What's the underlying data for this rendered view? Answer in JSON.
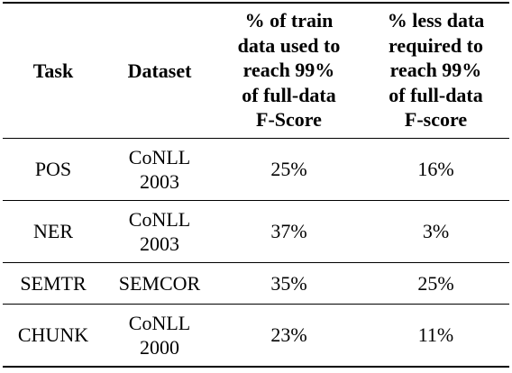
{
  "table": {
    "headers": {
      "task": "Task",
      "dataset": "Dataset",
      "train_pct": [
        "% of train",
        "data used to",
        "reach 99%",
        "of full-data",
        "F-Score"
      ],
      "less_pct": [
        "% less data",
        "required to",
        "reach 99%",
        "of full-data",
        "F-score"
      ]
    },
    "rows": [
      {
        "task": "POS",
        "dataset": [
          "CoNLL",
          "2003"
        ],
        "train_pct": "25%",
        "less_pct": "16%"
      },
      {
        "task": "NER",
        "dataset": [
          "CoNLL",
          "2003"
        ],
        "train_pct": "37%",
        "less_pct": "3%"
      },
      {
        "task": "SEMTR",
        "dataset": [
          "SEMCOR"
        ],
        "train_pct": "35%",
        "less_pct": "25%"
      },
      {
        "task": "CHUNK",
        "dataset": [
          "CoNLL",
          "2000"
        ],
        "train_pct": "23%",
        "less_pct": "11%"
      }
    ]
  }
}
